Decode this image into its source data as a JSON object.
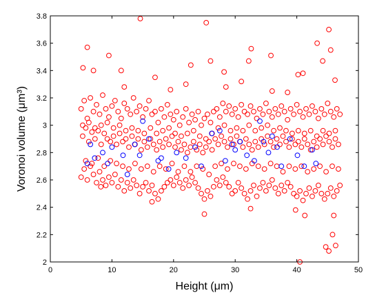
{
  "chart_data": {
    "type": "scatter",
    "xlabel": "Height (μm)",
    "ylabel": "Voronoi volume (μm³)",
    "xlim": [
      0,
      50
    ],
    "xticks": [
      0,
      10,
      20,
      30,
      40,
      50
    ],
    "ylim": [
      2,
      3.8
    ],
    "yticks": [
      2,
      2.2,
      2.4,
      2.6,
      2.8,
      3,
      3.2,
      3.4,
      3.6,
      3.8
    ],
    "series": [
      {
        "color": "#ff0000",
        "x": [
          5,
          5.5,
          6,
          6.5,
          7,
          7.5,
          8,
          8.5,
          9,
          9.5,
          10,
          10.5,
          11,
          11.5,
          12,
          12.5,
          13,
          13.5,
          14,
          14.5,
          15,
          15.5,
          16,
          16.5,
          17,
          17.5,
          18,
          18.5,
          19,
          19.5,
          20,
          20.5,
          21,
          21.5,
          22,
          22.5,
          23,
          23.5,
          24,
          24.5,
          25,
          25.5,
          26,
          26.5,
          27,
          27.5,
          28,
          28.5,
          29,
          29.5,
          30,
          30.5,
          31,
          31.5,
          32,
          32.5,
          33,
          33.5,
          34,
          34.5,
          35,
          35.5,
          36,
          36.5,
          37,
          37.5,
          38,
          38.5,
          39,
          39.5,
          40,
          40.5,
          41,
          41.5,
          42,
          42.5,
          43,
          43.5,
          44,
          44.5,
          45,
          45.5,
          46,
          46.5,
          47
        ],
        "y": [
          3.12,
          3.18,
          3.05,
          3.2,
          3.1,
          3.15,
          3.08,
          3.22,
          3.12,
          3.06,
          3.14,
          3.18,
          3.1,
          3.05,
          3.16,
          3.12,
          3.08,
          3.2,
          3.1,
          3.14,
          3.06,
          3.12,
          3.18,
          3.08,
          3.1,
          3.02,
          3.12,
          3.06,
          3.15,
          3.08,
          3.04,
          3.1,
          3.0,
          3.06,
          3.12,
          3.02,
          3.08,
          3.04,
          3.1,
          3.0,
          3.05,
          3.08,
          3.02,
          3.1,
          3.12,
          3.06,
          3.16,
          3.1,
          3.14,
          3.08,
          3.12,
          3.06,
          3.15,
          3.1,
          3.08,
          3.14,
          3.1,
          3.05,
          3.12,
          3.08,
          3.16,
          3.1,
          3.06,
          3.12,
          3.08,
          3.14,
          3.1,
          3.04,
          3.12,
          3.08,
          3.15,
          3.1,
          3.06,
          3.12,
          3.08,
          3.14,
          3.1,
          3.05,
          3.12,
          3.08,
          3.16,
          3.1,
          3.06,
          3.12,
          3.08
        ]
      },
      {
        "color": "#ff0000",
        "x": [
          5,
          5.5,
          6,
          6.5,
          7,
          7.5,
          8,
          8.5,
          9,
          9.5,
          10,
          10.5,
          11,
          11.5,
          12,
          12.5,
          13,
          13.5,
          14,
          14.5,
          15,
          15.5,
          16,
          16.5,
          17,
          17.5,
          18,
          18.5,
          19,
          19.5,
          20,
          20.5,
          21,
          21.5,
          22,
          22.5,
          23,
          23.5,
          24,
          24.5,
          25,
          25.5,
          26,
          26.5,
          27,
          27.5,
          28,
          28.5,
          29,
          29.5,
          30,
          30.5,
          31,
          31.5,
          32,
          32.5,
          33,
          33.5,
          34,
          34.5,
          35,
          35.5,
          36,
          36.5,
          37,
          37.5,
          38,
          38.5,
          39,
          39.5,
          40,
          40.5,
          41,
          41.5,
          42,
          42.5,
          43,
          43.5,
          44,
          44.5,
          45,
          45.5,
          46,
          46.5,
          47
        ],
        "y": [
          2.62,
          2.68,
          2.6,
          2.7,
          2.64,
          2.58,
          2.66,
          2.6,
          2.56,
          2.62,
          2.58,
          2.64,
          2.55,
          2.6,
          2.52,
          2.58,
          2.54,
          2.6,
          2.56,
          2.5,
          2.55,
          2.58,
          2.52,
          2.56,
          2.5,
          2.46,
          2.52,
          2.55,
          2.58,
          2.6,
          2.56,
          2.62,
          2.58,
          2.54,
          2.6,
          2.56,
          2.62,
          2.58,
          2.54,
          2.5,
          2.46,
          2.52,
          2.48,
          2.55,
          2.6,
          2.56,
          2.62,
          2.58,
          2.55,
          2.5,
          2.52,
          2.58,
          2.54,
          2.5,
          2.46,
          2.52,
          2.56,
          2.48,
          2.54,
          2.58,
          2.52,
          2.56,
          2.6,
          2.54,
          2.5,
          2.56,
          2.52,
          2.58,
          2.55,
          2.5,
          2.48,
          2.52,
          2.45,
          2.5,
          2.54,
          2.48,
          2.52,
          2.56,
          2.5,
          2.46,
          2.5,
          2.54,
          2.48,
          2.52,
          2.56
        ]
      },
      {
        "color": "#ff0000",
        "x": [
          5.25,
          5.75,
          6.25,
          6.75,
          7.25,
          7.75,
          8.25,
          8.75,
          9.25,
          9.75,
          10.25,
          10.75,
          11.25,
          11.75,
          12.25,
          12.75,
          13.25,
          13.75,
          14.25,
          14.75,
          15.25,
          15.75,
          16.25,
          16.75,
          17.25,
          17.75,
          18.25,
          18.75,
          19.25,
          19.75,
          20.25,
          20.75,
          21.25,
          21.75,
          22.25,
          22.75,
          23.25,
          23.75,
          24.25,
          24.75,
          25.25,
          25.75,
          26.25,
          26.75,
          27.25,
          27.75,
          28.25,
          28.75,
          29.25,
          29.75,
          30.25,
          30.75,
          31.25,
          31.75,
          32.25,
          32.75,
          33.25,
          33.75,
          34.25,
          34.75,
          35.25,
          35.75,
          36.25,
          36.75,
          37.25,
          37.75,
          38.25,
          38.75,
          39.25,
          39.75,
          40.25,
          40.75,
          41.25,
          41.75,
          42.25,
          42.75,
          43.25,
          43.75,
          44.25,
          44.75,
          45.25,
          45.75,
          46.25,
          46.75
        ],
        "y": [
          2.92,
          2.98,
          2.88,
          2.95,
          2.9,
          2.96,
          2.86,
          2.94,
          2.9,
          2.88,
          2.92,
          2.86,
          2.94,
          2.88,
          2.9,
          2.84,
          2.92,
          2.86,
          2.9,
          2.82,
          2.88,
          2.84,
          2.9,
          2.86,
          2.82,
          2.88,
          2.84,
          2.9,
          2.86,
          2.92,
          2.84,
          2.88,
          2.82,
          2.86,
          2.8,
          2.84,
          2.88,
          2.82,
          2.86,
          2.8,
          2.84,
          2.88,
          2.82,
          2.9,
          2.86,
          2.92,
          2.88,
          2.84,
          2.9,
          2.86,
          2.92,
          2.88,
          2.84,
          2.9,
          2.86,
          2.82,
          2.88,
          2.84,
          2.9,
          2.86,
          2.92,
          2.88,
          2.84,
          2.9,
          2.86,
          2.92,
          2.88,
          2.84,
          2.9,
          2.86,
          2.88,
          2.84,
          2.9,
          2.86,
          2.82,
          2.88,
          2.84,
          2.9,
          2.86,
          2.92,
          2.88,
          2.84,
          2.9,
          2.86
        ]
      },
      {
        "color": "#ff0000",
        "x": [
          5.25,
          5.75,
          6.25,
          6.75,
          7.25,
          7.75,
          8.25,
          8.75,
          9.25,
          9.75,
          10.25,
          10.75,
          11.25,
          11.75,
          12.25,
          12.75,
          13.25,
          13.75,
          14.25,
          14.75,
          15.25,
          15.75,
          16.25,
          16.75,
          17.25,
          17.75,
          18.25,
          18.75,
          19.25,
          19.75,
          20.25,
          20.75,
          21.25,
          21.75,
          22.25,
          22.75,
          23.25,
          23.75,
          24.25,
          24.75,
          25.25,
          25.75,
          26.25,
          26.75,
          27.25,
          27.75,
          28.25,
          28.75,
          29.25,
          29.75,
          30.25,
          30.75,
          31.25,
          31.75,
          32.25,
          32.75,
          33.25,
          33.75,
          34.25,
          34.75,
          35.25,
          35.75,
          36.25,
          36.75,
          37.25,
          37.75,
          38.25,
          38.75,
          39.25,
          39.75,
          40.25,
          40.75,
          41.25,
          41.75,
          42.25,
          42.75,
          43.25,
          43.75,
          44.25,
          44.75,
          45.25,
          45.75,
          46.25,
          46.75
        ],
        "y": [
          3.0,
          2.74,
          3.02,
          2.72,
          2.98,
          2.76,
          3.0,
          2.7,
          3.02,
          2.74,
          2.98,
          2.72,
          3.0,
          2.7,
          2.96,
          2.68,
          2.98,
          2.72,
          2.96,
          2.68,
          2.94,
          2.7,
          2.98,
          2.66,
          2.94,
          2.7,
          2.96,
          2.68,
          2.98,
          2.72,
          2.94,
          2.66,
          2.92,
          2.7,
          2.94,
          2.66,
          2.96,
          2.7,
          2.92,
          2.68,
          2.9,
          2.64,
          2.94,
          2.7,
          2.98,
          2.72,
          3.0,
          2.68,
          2.96,
          2.72,
          2.98,
          2.7,
          2.96,
          2.68,
          3.0,
          2.72,
          2.96,
          2.7,
          2.98,
          2.68,
          3.0,
          2.72,
          2.96,
          2.7,
          2.98,
          2.66,
          2.96,
          2.7,
          2.94,
          2.68,
          2.96,
          2.7,
          2.94,
          2.66,
          2.96,
          2.68,
          2.92,
          2.7,
          2.96,
          2.66,
          2.94,
          2.7,
          2.96,
          2.68
        ]
      },
      {
        "color": "#ff0000",
        "x": [
          14.6,
          25.3,
          45.2,
          43.3,
          6,
          45.5,
          32.6,
          9.5,
          35.8,
          26,
          22.8,
          32.2,
          44.2,
          5.3,
          7,
          11.5,
          28.2,
          40.2,
          46.2,
          31,
          17,
          22,
          44.7,
          45.2,
          46.3,
          40.5,
          45.8,
          41.3,
          46,
          25,
          39.8,
          32.5,
          16.5,
          8.2,
          36,
          12,
          19.5,
          28.5,
          38.5,
          41
        ],
        "y": [
          3.78,
          3.75,
          3.7,
          3.6,
          3.57,
          3.55,
          3.56,
          3.51,
          3.51,
          3.47,
          3.44,
          3.47,
          3.47,
          3.42,
          3.4,
          3.4,
          3.39,
          3.37,
          3.33,
          3.32,
          3.35,
          3.3,
          2.11,
          2.08,
          2.12,
          2.0,
          2.2,
          2.34,
          2.34,
          2.35,
          2.38,
          2.39,
          2.44,
          2.55,
          3.25,
          3.28,
          3.26,
          3.28,
          3.24,
          3.38
        ]
      },
      {
        "color": "#0000ff",
        "x": [
          6,
          6.5,
          7.2,
          8.5,
          9.3,
          10,
          11.8,
          12.5,
          13.7,
          14.5,
          15,
          16,
          17.5,
          18,
          19.2,
          20.5,
          22,
          23.5,
          24.5,
          26.2,
          27.5,
          28.4,
          29.5,
          30,
          30.8,
          31.9,
          33.1,
          34,
          34.6,
          35.4,
          36,
          36.8,
          37.5,
          38.9,
          40.1,
          41.2,
          42.5,
          43.1
        ],
        "y": [
          2.72,
          2.86,
          2.76,
          2.8,
          2.72,
          2.84,
          2.78,
          2.64,
          2.86,
          2.78,
          3.03,
          2.9,
          2.74,
          2.76,
          2.68,
          2.8,
          2.76,
          2.84,
          2.7,
          2.94,
          2.96,
          2.74,
          2.86,
          2.82,
          2.88,
          2.78,
          2.74,
          3.03,
          2.88,
          2.8,
          2.92,
          2.84,
          2.7,
          2.9,
          2.78,
          2.7,
          2.82,
          2.72
        ]
      }
    ]
  }
}
